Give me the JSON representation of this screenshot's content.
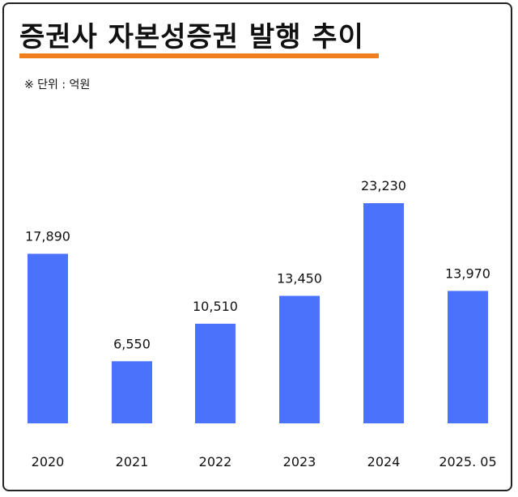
{
  "title": "증권사 자본성증권 발행 추이",
  "unit_note": "※ 단위 : 억원",
  "colors": {
    "bar": "#4a72fb",
    "accent_underline": "#f07f1f"
  },
  "chart_data": {
    "type": "bar",
    "categories": [
      "2020",
      "2021",
      "2022",
      "2023",
      "2024",
      "2025. 05"
    ],
    "values": [
      17890,
      6550,
      10510,
      13450,
      23230,
      13970
    ],
    "value_labels": [
      "17,890",
      "6,550",
      "10,510",
      "13,450",
      "23,230",
      "13,970"
    ],
    "ylim": [
      0,
      23230
    ],
    "grid": false,
    "legend": "none"
  }
}
